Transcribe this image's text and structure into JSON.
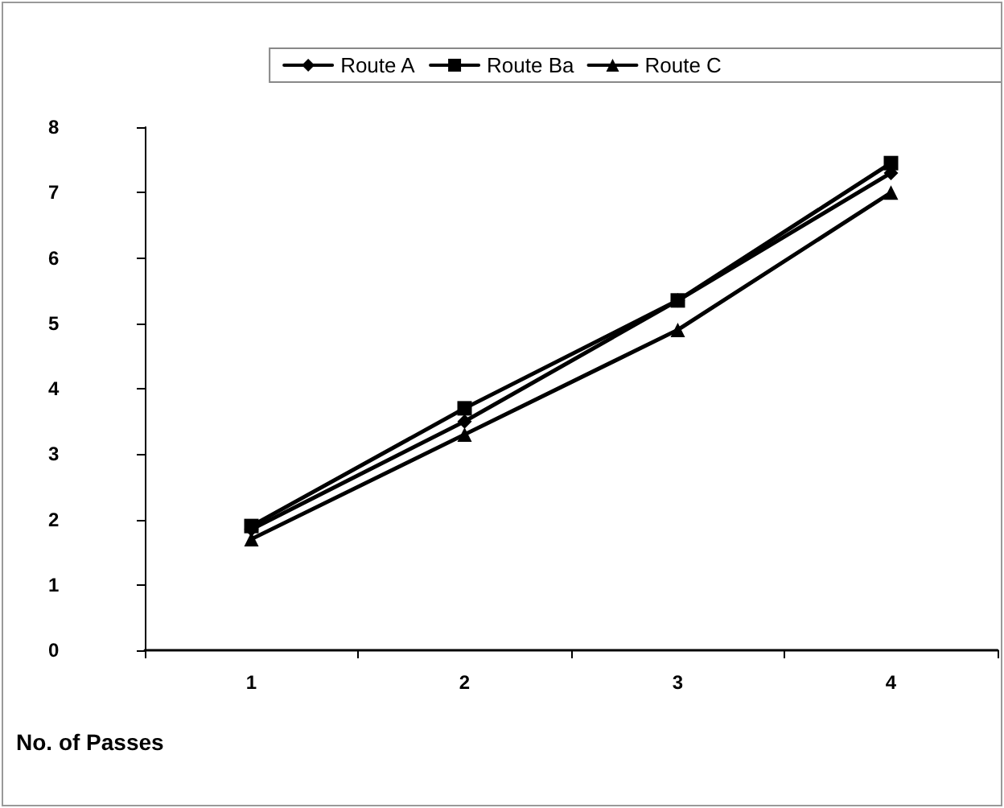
{
  "chart_data": {
    "type": "line",
    "xlabel": "No. of Passes",
    "categories": [
      "1",
      "2",
      "3",
      "4"
    ],
    "series": [
      {
        "name": "Route A",
        "color": "#000000",
        "marker": "diamond",
        "values": [
          1.85,
          3.5,
          5.35,
          7.3
        ]
      },
      {
        "name": "Route Ba",
        "color": "#000000",
        "marker": "square",
        "values": [
          1.9,
          3.7,
          5.35,
          7.45
        ]
      },
      {
        "name": "Route C",
        "color": "#000000",
        "marker": "triangle",
        "values": [
          1.7,
          3.3,
          4.9,
          7.0
        ]
      }
    ],
    "ylim": [
      0,
      8
    ],
    "yticks": [
      0,
      1,
      2,
      3,
      4,
      5,
      6,
      7,
      8
    ],
    "grid": false,
    "legend": "top",
    "line_style": "solid"
  }
}
